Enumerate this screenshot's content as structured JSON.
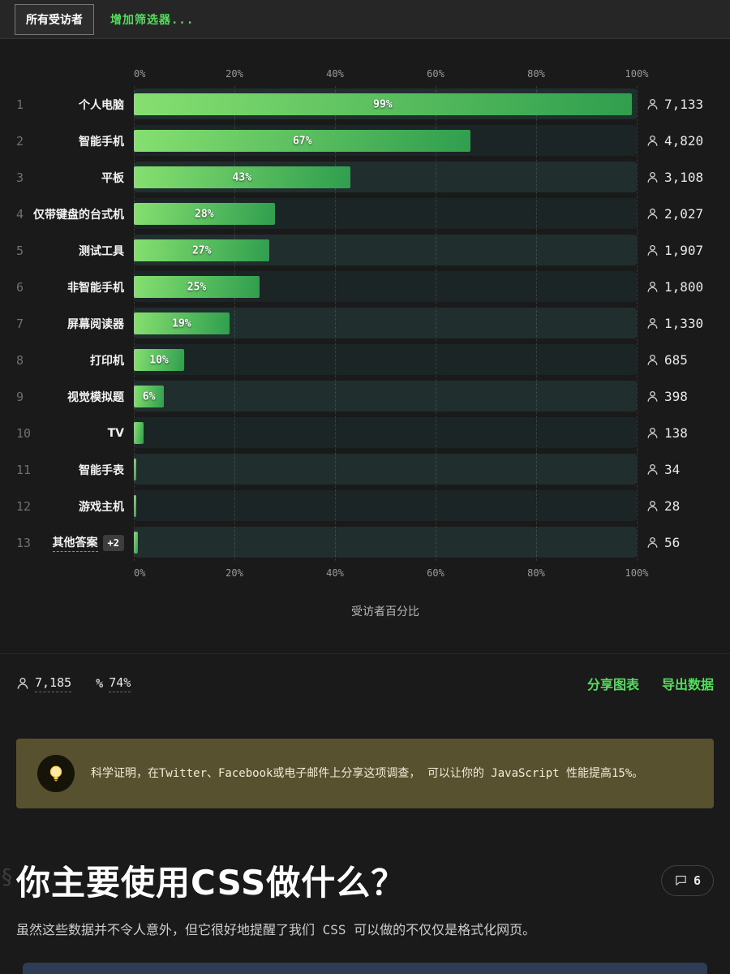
{
  "colors": {
    "accent": "#52de5c",
    "bar_gradient_from": "#86e070",
    "bar_gradient_to": "#2f9e4e"
  },
  "tabs": {
    "all_respondents": "所有受访者",
    "add_filter": "增加筛选器..."
  },
  "chart_data": {
    "type": "bar",
    "orientation": "horizontal",
    "xlabel": "受访者百分比",
    "xlim": [
      0,
      100
    ],
    "ticks": [
      {
        "value": 0,
        "label": "0%"
      },
      {
        "value": 20,
        "label": "20%"
      },
      {
        "value": 40,
        "label": "40%"
      },
      {
        "value": 60,
        "label": "60%"
      },
      {
        "value": 80,
        "label": "80%"
      },
      {
        "value": 100,
        "label": "100%"
      }
    ],
    "rows": [
      {
        "rank": "1",
        "label": "个人电脑",
        "percent": 99,
        "percent_label": "99%",
        "count": "7,133"
      },
      {
        "rank": "2",
        "label": "智能手机",
        "percent": 67,
        "percent_label": "67%",
        "count": "4,820"
      },
      {
        "rank": "3",
        "label": "平板",
        "percent": 43,
        "percent_label": "43%",
        "count": "3,108"
      },
      {
        "rank": "4",
        "label": "仅带键盘的台式机",
        "percent": 28,
        "percent_label": "28%",
        "count": "2,027"
      },
      {
        "rank": "5",
        "label": "测试工具",
        "percent": 27,
        "percent_label": "27%",
        "count": "1,907"
      },
      {
        "rank": "6",
        "label": "非智能手机",
        "percent": 25,
        "percent_label": "25%",
        "count": "1,800"
      },
      {
        "rank": "7",
        "label": "屏幕阅读器",
        "percent": 19,
        "percent_label": "19%",
        "count": "1,330"
      },
      {
        "rank": "8",
        "label": "打印机",
        "percent": 10,
        "percent_label": "10%",
        "count": "685"
      },
      {
        "rank": "9",
        "label": "视觉模拟题",
        "percent": 6,
        "percent_label": "6%",
        "count": "398"
      },
      {
        "rank": "10",
        "label": "TV",
        "percent": 1.9,
        "percent_label": "",
        "count": "138"
      },
      {
        "rank": "11",
        "label": "智能手表",
        "percent": 0.5,
        "percent_label": "",
        "count": "34"
      },
      {
        "rank": "12",
        "label": "游戏主机",
        "percent": 0.4,
        "percent_label": "",
        "count": "28"
      },
      {
        "rank": "13",
        "label": "其他答案",
        "badge": "+2",
        "percent": 0.8,
        "percent_label": "",
        "count": "56"
      }
    ]
  },
  "footer": {
    "respondents": "7,185",
    "completion": "74%",
    "share_label": "分享图表",
    "export_label": "导出数据"
  },
  "tip": {
    "text": "科学证明，在Twitter、Facebook或电子邮件上分享这项调查， 可以让你的 JavaScript 性能提高15%。"
  },
  "next_question": {
    "title": "你主要使用CSS做什么？",
    "comment_count": "6",
    "description": "虽然这些数据并不令人意外，但它很好地提醒了我们 CSS 可以做的不仅仅是格式化网页。"
  }
}
